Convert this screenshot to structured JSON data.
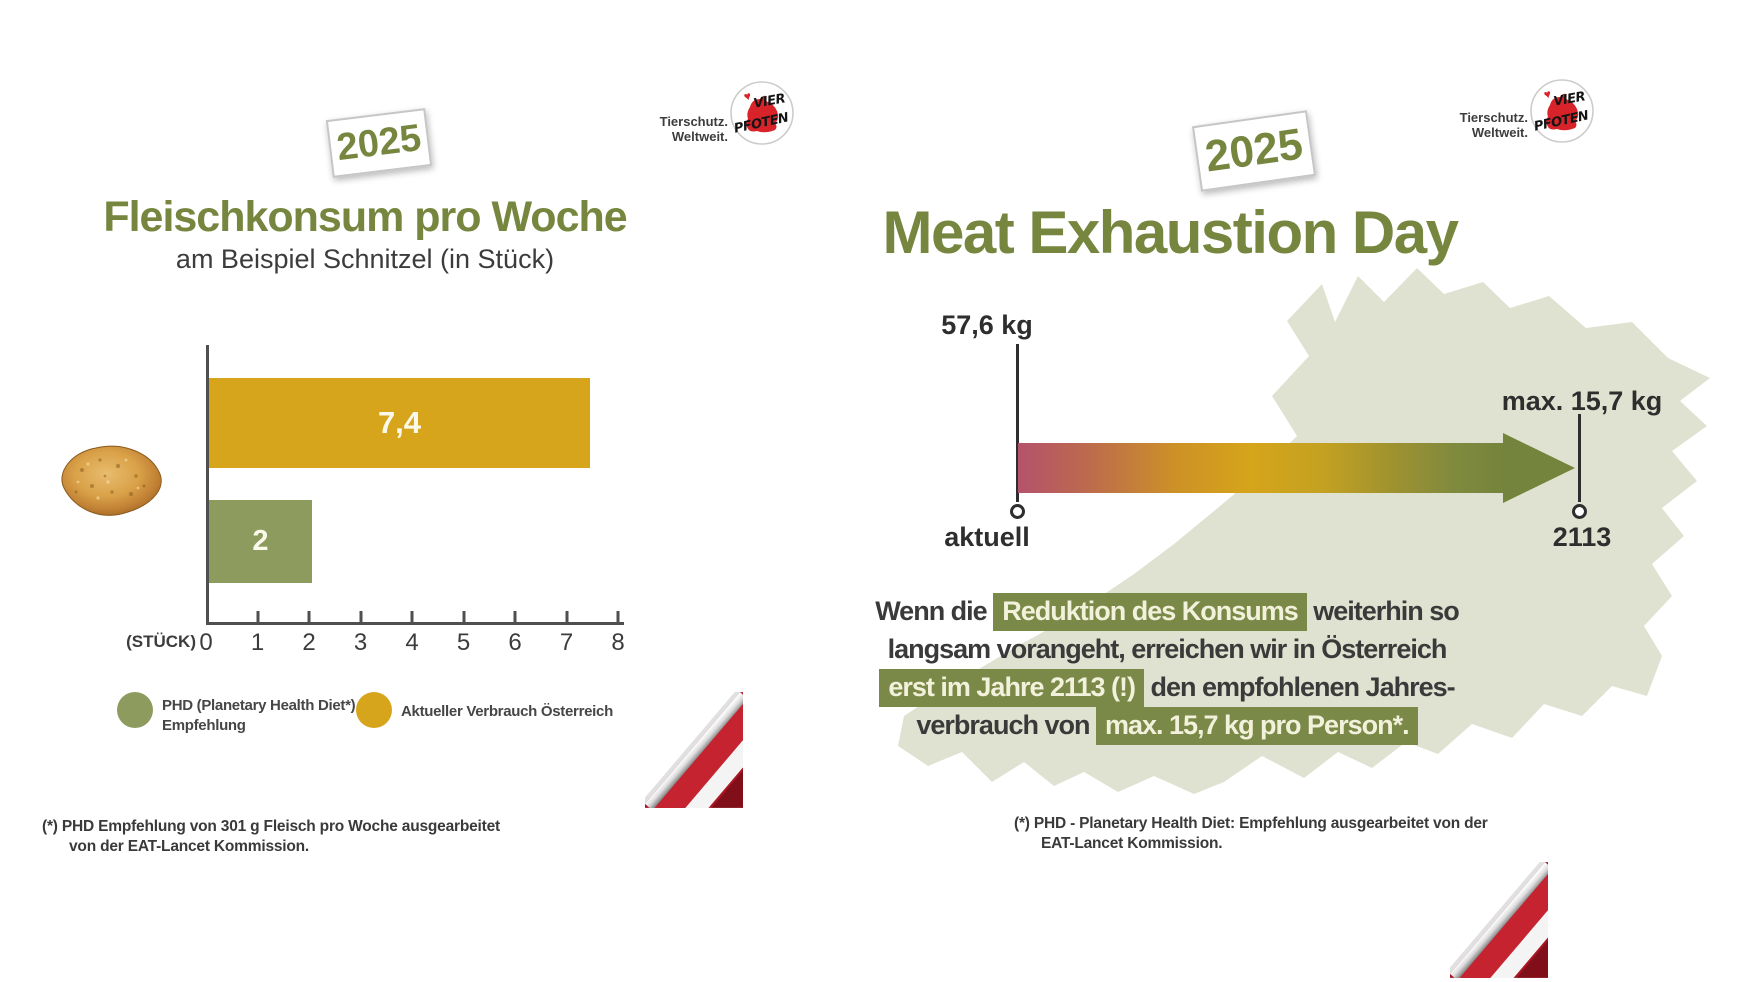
{
  "brand": {
    "line1": "Tierschutz.",
    "line2": "Weltweit.",
    "logo_top": "VIER",
    "logo_bottom": "PFOTEN"
  },
  "left_panel": {
    "badge": "2025",
    "title": "Fleischkonsum pro Woche",
    "subtitle": "am Beispiel Schnitzel (in Stück)",
    "axis_unit": "(STÜCK)",
    "bar_label_current": "7,4",
    "bar_label_phd": "2",
    "legend": [
      {
        "lines": [
          "PHD (Planetary Health Diet*)",
          "Empfehlung"
        ],
        "color": "#8d9c5e"
      },
      {
        "lines": [
          "Aktueller Verbrauch Österreich"
        ],
        "color": "#d6a51c"
      }
    ],
    "footnote": [
      "(*) PHD Empfehlung von 301 g Fleisch pro Woche ausgearbeitet",
      "von der EAT-Lancet Kommission."
    ]
  },
  "right_panel": {
    "badge": "2025",
    "title": "Meat Exhaustion Day",
    "timeline": {
      "start_value": "57,6 kg",
      "start_label": "aktuell",
      "end_value": "max. 15,7 kg",
      "end_label": "2113"
    },
    "message": {
      "lines": [
        {
          "segments": [
            {
              "text": "Wenn die ",
              "hl": false
            },
            {
              "text": "Reduktion des Konsums",
              "hl": true
            },
            {
              "text": " weiterhin so",
              "hl": false
            }
          ]
        },
        {
          "segments": [
            {
              "text": "langsam vorangeht, erreichen wir in Österreich",
              "hl": false
            }
          ]
        },
        {
          "segments": [
            {
              "text": "erst im Jahre 2113 (!)",
              "hl": true
            },
            {
              "text": " den empfohlenen Jahres-",
              "hl": false
            }
          ]
        },
        {
          "segments": [
            {
              "text": "verbrauch von ",
              "hl": false
            },
            {
              "text": "max. 15,7 kg pro Person*.",
              "hl": true
            }
          ]
        }
      ]
    },
    "footnote": [
      "(*) PHD - Planetary Health Diet: Empfehlung ausgearbeitet von der",
      "EAT-Lancet Kommission."
    ]
  },
  "colors": {
    "olive_green": "#76863f",
    "bar_yellow": "#d6a51c",
    "bar_green": "#8d9c5e",
    "highlight_bg": "#7b8948",
    "highlight_text": "#f2f1db",
    "map_fill": "#e0e2d1",
    "flag_red": "#c62330",
    "gradient_start": "#b5526b",
    "gradient_mid": "#d5a51a",
    "gradient_end": "#75843c"
  },
  "chart_data": [
    {
      "type": "bar",
      "orientation": "horizontal",
      "title": "Fleischkonsum pro Woche",
      "subtitle": "am Beispiel Schnitzel (in Stück)",
      "unit_label": "(STÜCK)",
      "categories": [
        "Aktueller Verbrauch Österreich",
        "PHD (Planetary Health Diet*) Empfehlung"
      ],
      "values": [
        7.4,
        2
      ],
      "value_labels": [
        "7,4",
        "2"
      ],
      "bar_colors": [
        "#d6a51c",
        "#8d9c5e"
      ],
      "x_ticks": [
        0,
        1,
        2,
        3,
        4,
        5,
        6,
        7,
        8
      ],
      "xlim": [
        0,
        8
      ],
      "grid": false,
      "legend_position": "bottom"
    },
    {
      "type": "timeline-arrow",
      "title": "Meat Exhaustion Day",
      "start": {
        "display": "57,6 kg",
        "value_kg": 57.6,
        "label": "aktuell"
      },
      "end": {
        "display": "max. 15,7 kg",
        "value_kg": 15.7,
        "label": "2113"
      },
      "gradient": [
        "#b5526b",
        "#d5a51a",
        "#75843c"
      ]
    }
  ]
}
